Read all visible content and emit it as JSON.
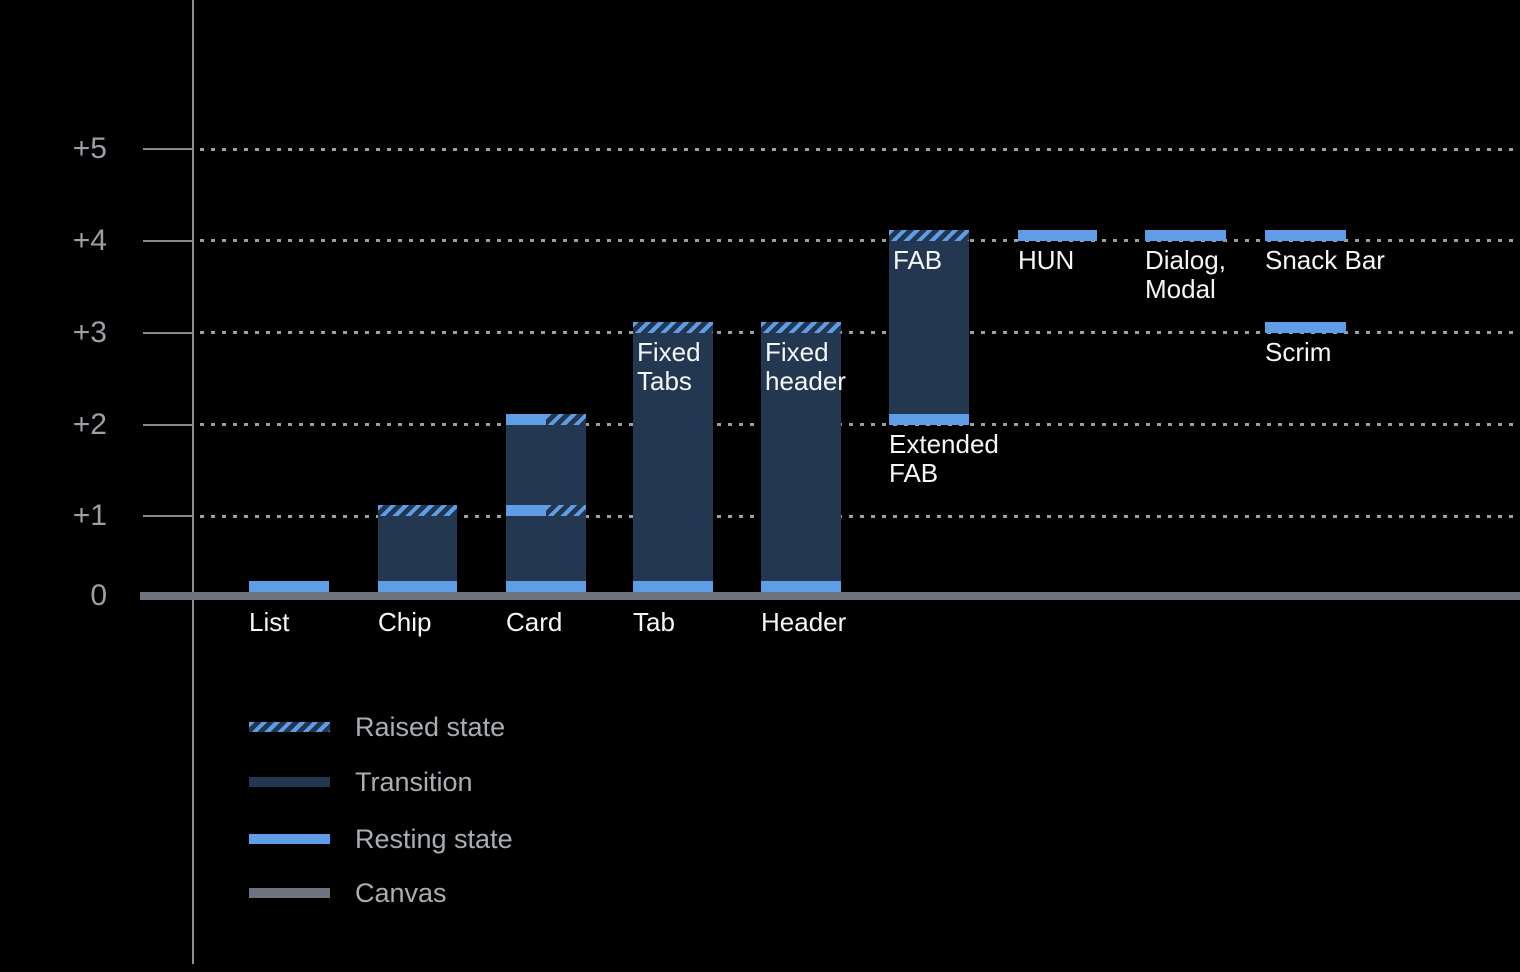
{
  "chart_data": {
    "type": "bar",
    "title": "",
    "description": "Elevation diagram: UI components plotted by elevation level with resting state, raised state, transition and canvas",
    "ylim": [
      0,
      5
    ],
    "grid": "dotted horizontal lines at each elevation level",
    "legend_position": "bottom-left",
    "colors": {
      "background": "#000000",
      "resting_state": "#5f9ee7",
      "transition": "#243750",
      "canvas": "#6d747d",
      "grid": "#9aa0a6",
      "axis_text": "#9aa0a6",
      "label_text": "#f4f6f7",
      "legend_text": "#a9aeb4"
    },
    "y_ticks": [
      {
        "label": "+5",
        "level": 5
      },
      {
        "label": "+4",
        "level": 4
      },
      {
        "label": "+3",
        "level": 3
      },
      {
        "label": "+2",
        "level": 2
      },
      {
        "label": "+1",
        "level": 1
      },
      {
        "label": "0",
        "level": 0
      }
    ],
    "components": [
      {
        "label": "List",
        "caption_at": "baseline",
        "bar": null,
        "markers": [
          {
            "level": 0,
            "style": "resting"
          }
        ]
      },
      {
        "label": "Chip",
        "caption_at": "baseline",
        "bar": {
          "from": 0,
          "to": 1
        },
        "markers": [
          {
            "level": 1,
            "style": "raised"
          },
          {
            "level": 0,
            "style": "resting"
          }
        ]
      },
      {
        "label": "Card",
        "caption_at": "baseline",
        "bar": {
          "from": 0,
          "to": 2
        },
        "markers": [
          {
            "level": 2,
            "style": "split"
          },
          {
            "level": 1,
            "style": "split"
          },
          {
            "level": 0,
            "style": "resting"
          }
        ]
      },
      {
        "label": "Tab",
        "caption_at": "baseline",
        "inner_label": "Fixed Tabs",
        "bar": {
          "from": 0,
          "to": 3
        },
        "markers": [
          {
            "level": 3,
            "style": "raised"
          },
          {
            "level": 0,
            "style": "resting"
          }
        ]
      },
      {
        "label": "Header",
        "caption_at": "baseline",
        "inner_label": "Fixed header",
        "bar": {
          "from": 0,
          "to": 3
        },
        "markers": [
          {
            "level": 3,
            "style": "raised"
          },
          {
            "level": 0,
            "style": "resting"
          }
        ]
      },
      {
        "label": "Extended FAB",
        "caption_at": "bar-bottom",
        "inner_label": "FAB",
        "bar": {
          "from": 2,
          "to": 4
        },
        "markers": [
          {
            "level": 4,
            "style": "raised"
          },
          {
            "level": 2,
            "style": "resting"
          }
        ]
      },
      {
        "label": "HUN",
        "caption_at": "marker",
        "bar": null,
        "markers": [
          {
            "level": 4,
            "style": "resting"
          }
        ]
      },
      {
        "label": "Dialog, Modal",
        "caption_at": "marker",
        "bar": null,
        "markers": [
          {
            "level": 4,
            "style": "resting"
          }
        ]
      },
      {
        "label": "Snack Bar",
        "caption_at": "marker",
        "bar": null,
        "markers": [
          {
            "level": 4,
            "style": "resting"
          }
        ]
      },
      {
        "label": "Scrim",
        "caption_at": "marker",
        "bar": null,
        "markers": [
          {
            "level": 3,
            "style": "resting"
          }
        ]
      }
    ],
    "legend": [
      {
        "label": "Raised state",
        "style": "raised"
      },
      {
        "label": "Transition",
        "style": "transition"
      },
      {
        "label": "Resting state",
        "style": "resting"
      },
      {
        "label": "Canvas",
        "style": "canvas"
      }
    ]
  }
}
